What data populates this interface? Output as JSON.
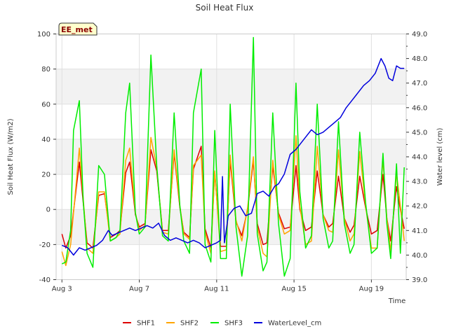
{
  "chart_data": {
    "type": "line",
    "title": "Soil Heat Flux",
    "xlabel": "Time",
    "ylabel": "Soil Heat Flux (W/m2)",
    "y2label": "Water level (cm)",
    "badge": "EE_met",
    "x_unit": "days since Aug 3",
    "xlim": [
      -0.3,
      17.8
    ],
    "ylim": [
      -40,
      100
    ],
    "y2lim": [
      39.0,
      49.0
    ],
    "x_ticks": [
      {
        "x": 0,
        "label": "Aug 3"
      },
      {
        "x": 4,
        "label": "Aug 7"
      },
      {
        "x": 8,
        "label": "Aug 11"
      },
      {
        "x": 12,
        "label": "Aug 15"
      },
      {
        "x": 16,
        "label": "Aug 19"
      }
    ],
    "y_ticks": [
      -40,
      -20,
      0,
      20,
      40,
      60,
      80,
      100
    ],
    "y2_ticks": [
      "39.0",
      "40.0",
      "41.0",
      "42.0",
      "43.0",
      "44.0",
      "45.0",
      "46.0",
      "47.0",
      "48.0",
      "49.0"
    ],
    "bands": [
      [
        -20,
        0
      ],
      [
        20,
        40
      ],
      [
        60,
        80
      ]
    ],
    "series": [
      {
        "name": "SHF1",
        "color": "#dd0000",
        "axis": "left",
        "points": [
          [
            0,
            -14
          ],
          [
            0.2,
            -22
          ],
          [
            0.45,
            -15
          ],
          [
            0.9,
            27
          ],
          [
            1.3,
            -19
          ],
          [
            1.6,
            -22
          ],
          [
            1.9,
            8
          ],
          [
            2.2,
            9
          ],
          [
            2.5,
            -16
          ],
          [
            2.8,
            -14
          ],
          [
            3.0,
            -12
          ],
          [
            3.3,
            21
          ],
          [
            3.5,
            27
          ],
          [
            3.8,
            -3
          ],
          [
            4.0,
            -10
          ],
          [
            4.3,
            -8
          ],
          [
            4.6,
            34
          ],
          [
            4.9,
            22
          ],
          [
            5.2,
            -12
          ],
          [
            5.5,
            -12
          ],
          [
            5.8,
            32
          ],
          [
            6.1,
            1
          ],
          [
            6.3,
            -13
          ],
          [
            6.6,
            -16
          ],
          [
            6.8,
            23
          ],
          [
            7.2,
            36
          ],
          [
            7.4,
            -11
          ],
          [
            7.7,
            -22
          ],
          [
            7.9,
            21
          ],
          [
            8.2,
            -21
          ],
          [
            8.5,
            -21
          ],
          [
            8.7,
            28
          ],
          [
            9.0,
            -7
          ],
          [
            9.3,
            -15
          ],
          [
            9.6,
            0
          ],
          [
            9.9,
            28
          ],
          [
            10.1,
            -8
          ],
          [
            10.4,
            -20
          ],
          [
            10.6,
            -19
          ],
          [
            10.9,
            25
          ],
          [
            11.2,
            -2
          ],
          [
            11.5,
            -11
          ],
          [
            11.8,
            -10
          ],
          [
            12.1,
            25
          ],
          [
            12.3,
            0
          ],
          [
            12.6,
            -12
          ],
          [
            12.9,
            -10
          ],
          [
            13.2,
            22
          ],
          [
            13.5,
            -3
          ],
          [
            13.8,
            -10
          ],
          [
            14.0,
            -8
          ],
          [
            14.3,
            19
          ],
          [
            14.6,
            -5
          ],
          [
            14.9,
            -13
          ],
          [
            15.1,
            -9
          ],
          [
            15.4,
            19
          ],
          [
            15.7,
            1
          ],
          [
            16.0,
            -14
          ],
          [
            16.3,
            -12
          ],
          [
            16.6,
            20
          ],
          [
            16.8,
            -5
          ],
          [
            17.0,
            -18
          ],
          [
            17.3,
            13
          ],
          [
            17.5,
            0
          ],
          [
            17.7,
            -11
          ]
        ]
      },
      {
        "name": "SHF2",
        "color": "#ffa500",
        "axis": "left",
        "points": [
          [
            0,
            -24
          ],
          [
            0.2,
            -32
          ],
          [
            0.45,
            -20
          ],
          [
            0.9,
            35
          ],
          [
            1.3,
            -22
          ],
          [
            1.6,
            -25
          ],
          [
            1.9,
            10
          ],
          [
            2.2,
            10
          ],
          [
            2.5,
            -18
          ],
          [
            2.8,
            -16
          ],
          [
            3.0,
            -14
          ],
          [
            3.3,
            28
          ],
          [
            3.5,
            35
          ],
          [
            3.8,
            -2
          ],
          [
            4.0,
            -12
          ],
          [
            4.3,
            -9
          ],
          [
            4.6,
            41
          ],
          [
            4.9,
            24
          ],
          [
            5.2,
            -13
          ],
          [
            5.5,
            -14
          ],
          [
            5.8,
            34
          ],
          [
            6.1,
            2
          ],
          [
            6.3,
            -14
          ],
          [
            6.6,
            -17
          ],
          [
            6.8,
            25
          ],
          [
            7.2,
            31
          ],
          [
            7.4,
            -13
          ],
          [
            7.7,
            -25
          ],
          [
            7.9,
            22
          ],
          [
            8.2,
            -24
          ],
          [
            8.5,
            -23
          ],
          [
            8.7,
            31
          ],
          [
            9.0,
            -6
          ],
          [
            9.3,
            -18
          ],
          [
            9.6,
            1
          ],
          [
            9.9,
            30
          ],
          [
            10.1,
            -10
          ],
          [
            10.4,
            -25
          ],
          [
            10.6,
            -27
          ],
          [
            10.9,
            28
          ],
          [
            11.2,
            -3
          ],
          [
            11.5,
            -14
          ],
          [
            11.8,
            -12
          ],
          [
            12.1,
            42
          ],
          [
            12.3,
            2
          ],
          [
            12.6,
            -20
          ],
          [
            12.9,
            -18
          ],
          [
            13.2,
            36
          ],
          [
            13.5,
            -3
          ],
          [
            13.8,
            -12
          ],
          [
            14.0,
            -13
          ],
          [
            14.3,
            34
          ],
          [
            14.6,
            -5
          ],
          [
            14.9,
            -18
          ],
          [
            15.1,
            -14
          ],
          [
            15.4,
            33
          ],
          [
            15.7,
            2
          ],
          [
            16.0,
            -22
          ],
          [
            16.3,
            -22
          ],
          [
            16.6,
            29
          ],
          [
            16.8,
            -5
          ],
          [
            17.0,
            -24
          ],
          [
            17.3,
            21
          ],
          [
            17.5,
            2
          ],
          [
            17.7,
            -18
          ]
        ]
      },
      {
        "name": "SHF3",
        "color": "#00ee00",
        "axis": "left",
        "points": [
          [
            0,
            -31
          ],
          [
            0.2,
            -30
          ],
          [
            0.45,
            -12
          ],
          [
            0.6,
            45
          ],
          [
            0.9,
            62
          ],
          [
            1.1,
            5
          ],
          [
            1.3,
            -25
          ],
          [
            1.6,
            -33
          ],
          [
            1.9,
            25
          ],
          [
            2.2,
            20
          ],
          [
            2.5,
            -18
          ],
          [
            2.8,
            -16
          ],
          [
            3.0,
            -12
          ],
          [
            3.3,
            55
          ],
          [
            3.5,
            72
          ],
          [
            3.8,
            -2
          ],
          [
            4.0,
            -14
          ],
          [
            4.3,
            -10
          ],
          [
            4.6,
            88
          ],
          [
            4.9,
            25
          ],
          [
            5.2,
            -15
          ],
          [
            5.5,
            -18
          ],
          [
            5.8,
            55
          ],
          [
            6.1,
            2
          ],
          [
            6.3,
            -18
          ],
          [
            6.6,
            -25
          ],
          [
            6.8,
            55
          ],
          [
            7.2,
            80
          ],
          [
            7.4,
            -20
          ],
          [
            7.7,
            -30
          ],
          [
            7.9,
            45
          ],
          [
            8.2,
            -28
          ],
          [
            8.5,
            -28
          ],
          [
            8.7,
            60
          ],
          [
            9.0,
            -10
          ],
          [
            9.3,
            -38
          ],
          [
            9.6,
            -15
          ],
          [
            9.9,
            98
          ],
          [
            10.1,
            -14
          ],
          [
            10.4,
            -35
          ],
          [
            10.6,
            -30
          ],
          [
            10.9,
            55
          ],
          [
            11.2,
            -8
          ],
          [
            11.5,
            -38
          ],
          [
            11.8,
            -28
          ],
          [
            12.1,
            72
          ],
          [
            12.3,
            10
          ],
          [
            12.6,
            -22
          ],
          [
            12.9,
            -15
          ],
          [
            13.2,
            60
          ],
          [
            13.5,
            -5
          ],
          [
            13.8,
            -22
          ],
          [
            14.0,
            -18
          ],
          [
            14.3,
            50
          ],
          [
            14.6,
            -8
          ],
          [
            14.9,
            -25
          ],
          [
            15.1,
            -20
          ],
          [
            15.4,
            44
          ],
          [
            15.7,
            4
          ],
          [
            16.0,
            -25
          ],
          [
            16.3,
            -22
          ],
          [
            16.6,
            32
          ],
          [
            16.8,
            -8
          ],
          [
            17.0,
            -28
          ],
          [
            17.3,
            26
          ],
          [
            17.5,
            -25
          ],
          [
            17.7,
            24
          ]
        ]
      },
      {
        "name": "WaterLevel_cm",
        "color": "#0000dd",
        "axis": "right",
        "points": [
          [
            0,
            40.4
          ],
          [
            0.3,
            40.3
          ],
          [
            0.6,
            40.0
          ],
          [
            0.9,
            40.3
          ],
          [
            1.2,
            40.2
          ],
          [
            1.5,
            40.3
          ],
          [
            1.8,
            40.4
          ],
          [
            2.1,
            40.6
          ],
          [
            2.4,
            41.0
          ],
          [
            2.6,
            40.8
          ],
          [
            2.9,
            40.9
          ],
          [
            3.2,
            41.0
          ],
          [
            3.5,
            41.1
          ],
          [
            3.8,
            41.0
          ],
          [
            4.1,
            41.1
          ],
          [
            4.4,
            41.2
          ],
          [
            4.7,
            41.1
          ],
          [
            5.0,
            41.3
          ],
          [
            5.3,
            40.8
          ],
          [
            5.6,
            40.6
          ],
          [
            5.9,
            40.7
          ],
          [
            6.2,
            40.6
          ],
          [
            6.5,
            40.5
          ],
          [
            6.8,
            40.6
          ],
          [
            7.1,
            40.5
          ],
          [
            7.4,
            40.3
          ],
          [
            7.7,
            40.4
          ],
          [
            8.0,
            40.5
          ],
          [
            8.2,
            40.6
          ],
          [
            8.3,
            43.2
          ],
          [
            8.4,
            40.5
          ],
          [
            8.6,
            41.6
          ],
          [
            8.9,
            41.9
          ],
          [
            9.2,
            42.0
          ],
          [
            9.5,
            41.6
          ],
          [
            9.8,
            41.7
          ],
          [
            10.1,
            42.5
          ],
          [
            10.4,
            42.6
          ],
          [
            10.7,
            42.4
          ],
          [
            11.0,
            42.8
          ],
          [
            11.2,
            42.9
          ],
          [
            11.5,
            43.3
          ],
          [
            11.8,
            44.1
          ],
          [
            12.1,
            44.3
          ],
          [
            12.3,
            44.5
          ],
          [
            12.6,
            44.8
          ],
          [
            12.9,
            45.1
          ],
          [
            13.2,
            44.9
          ],
          [
            13.5,
            45.0
          ],
          [
            13.8,
            45.2
          ],
          [
            14.1,
            45.4
          ],
          [
            14.4,
            45.6
          ],
          [
            14.7,
            46.0
          ],
          [
            15.0,
            46.3
          ],
          [
            15.3,
            46.6
          ],
          [
            15.6,
            46.9
          ],
          [
            15.9,
            47.1
          ],
          [
            16.2,
            47.4
          ],
          [
            16.5,
            48.0
          ],
          [
            16.7,
            47.7
          ],
          [
            16.9,
            47.2
          ],
          [
            17.1,
            47.1
          ],
          [
            17.3,
            47.7
          ],
          [
            17.5,
            47.6
          ],
          [
            17.7,
            47.6
          ]
        ]
      }
    ]
  }
}
